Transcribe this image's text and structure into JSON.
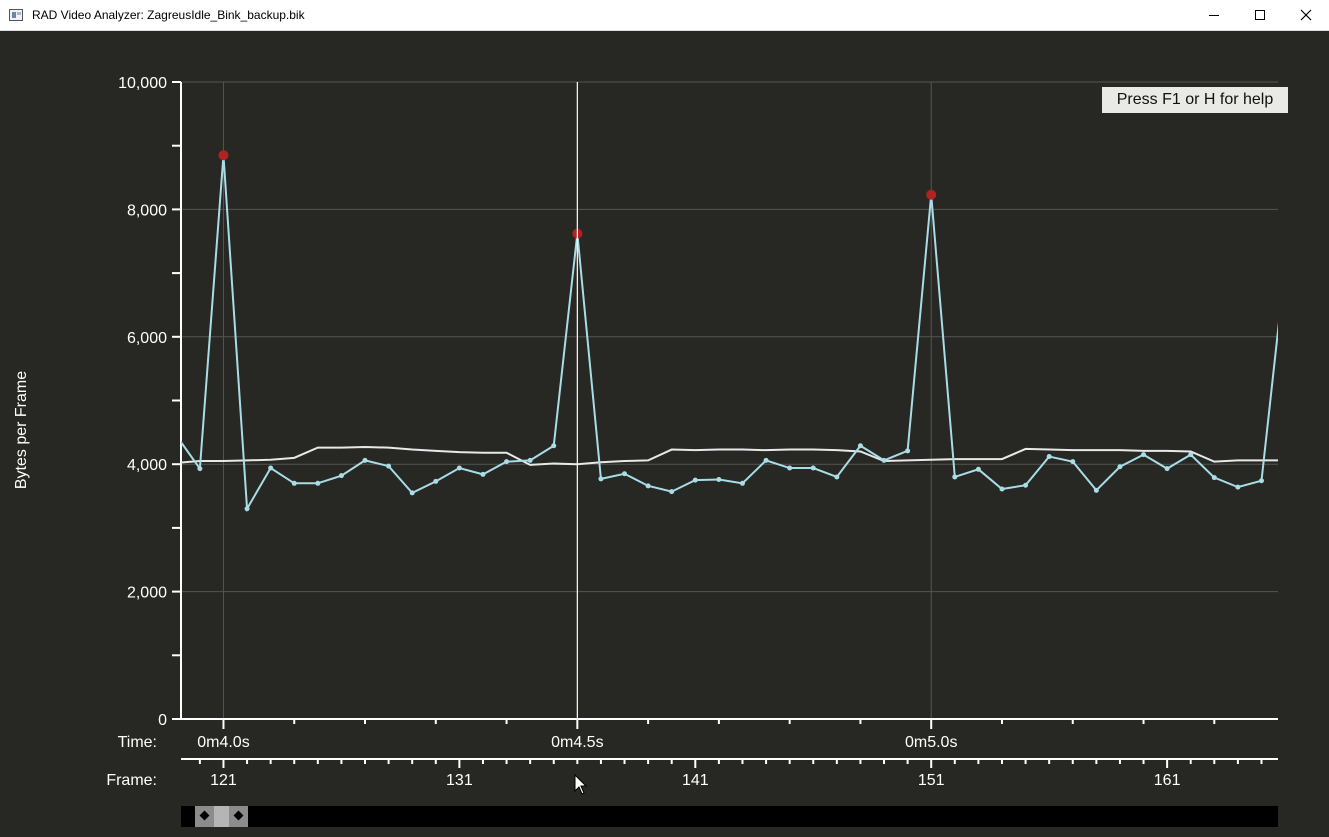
{
  "window": {
    "title": "RAD Video Analyzer: ZagreusIdle_Bink_backup.bik",
    "buttons": [
      "minimize",
      "maximize",
      "close"
    ]
  },
  "help_hint": "Press F1 or H for help",
  "labels": {
    "time": "Time:",
    "frame": "Frame:"
  },
  "colors": {
    "background": "#272724",
    "frame_series": "#a8dde6",
    "average_series": "#e8e8e8",
    "keyframe_marker": "#b22222",
    "grid": "#555551",
    "axis": "#ffffff"
  },
  "cursor_frame": 136,
  "chart_data": {
    "type": "line",
    "title": "",
    "xlabel": "Frame:",
    "ylabel": "Bytes per Frame",
    "ylim": [
      0,
      10000
    ],
    "xlim": [
      119.2,
      165.7
    ],
    "y_ticks": [
      0,
      2000,
      4000,
      6000,
      8000,
      10000
    ],
    "y_tick_labels": [
      "0",
      "2,000",
      "4,000",
      "6,000",
      "8,000",
      "10,000"
    ],
    "frame_ticks": [
      121,
      131,
      141,
      151,
      161
    ],
    "frame_tick_labels": [
      "121",
      "131",
      "141",
      "151",
      "161"
    ],
    "time_ticks": [
      {
        "frame": 121,
        "label": "0m4.0s"
      },
      {
        "frame": 136,
        "label": "0m4.5s"
      },
      {
        "frame": 151,
        "label": "0m5.0s"
      }
    ],
    "grid": true,
    "series": [
      {
        "x": [
          119,
          120,
          121,
          122,
          123,
          124,
          125,
          126,
          127,
          128,
          129,
          130,
          131,
          132,
          133,
          134,
          135,
          136,
          137,
          138,
          139,
          140,
          141,
          142,
          143,
          144,
          145,
          146,
          147,
          148,
          149,
          150,
          151,
          152,
          153,
          154,
          155,
          156,
          157,
          158,
          159,
          160,
          161,
          162,
          163,
          164,
          165,
          166
        ],
        "values": [
          4450,
          3930,
          8850,
          3300,
          3940,
          3700,
          3700,
          3820,
          4060,
          3970,
          3550,
          3730,
          3940,
          3840,
          4040,
          4060,
          4290,
          7620,
          3770,
          3850,
          3660,
          3570,
          3750,
          3760,
          3700,
          4060,
          3940,
          3940,
          3800,
          4290,
          4060,
          4210,
          8230,
          3800,
          3920,
          3610,
          3670,
          4120,
          4040,
          3590,
          3960,
          4150,
          3930,
          4150,
          3790,
          3640,
          3740,
          7100
        ],
        "keyframes": [
          121,
          136,
          151
        ]
      },
      {
        "x": [
          119,
          120,
          121,
          122,
          123,
          124,
          125,
          126,
          127,
          128,
          129,
          130,
          131,
          132,
          133,
          134,
          135,
          136,
          137,
          138,
          139,
          140,
          141,
          142,
          143,
          144,
          145,
          146,
          147,
          148,
          149,
          150,
          151,
          152,
          153,
          154,
          155,
          156,
          157,
          158,
          159,
          160,
          161,
          162,
          163,
          164,
          165,
          166
        ],
        "values": [
          4020,
          4050,
          4050,
          4060,
          4070,
          4100,
          4260,
          4260,
          4270,
          4260,
          4230,
          4210,
          4190,
          4180,
          4180,
          3990,
          4010,
          4000,
          4030,
          4050,
          4060,
          4230,
          4220,
          4230,
          4230,
          4220,
          4230,
          4230,
          4220,
          4200,
          4050,
          4060,
          4070,
          4080,
          4080,
          4080,
          4240,
          4230,
          4220,
          4220,
          4220,
          4210,
          4210,
          4200,
          4040,
          4060,
          4060,
          4060
        ]
      }
    ]
  }
}
